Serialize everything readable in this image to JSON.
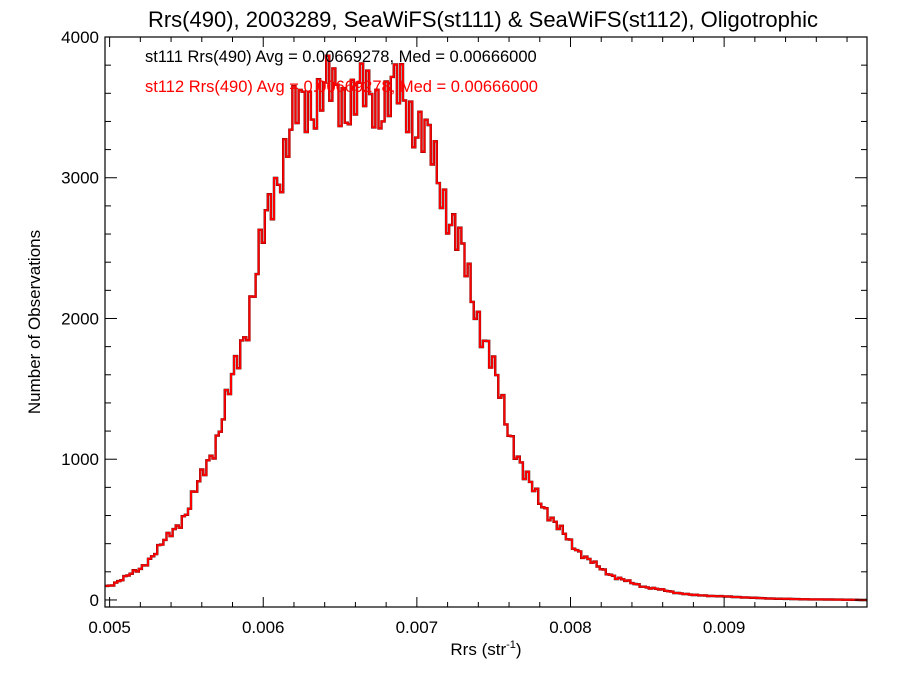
{
  "chart_data": {
    "type": "histogram-step",
    "title": "Rrs(490), 2003289, SeaWiFS(st111) & SeaWiFS(st112), Oligotrophic",
    "xlabel": "Rrs (str",
    "xlabel_sup": "-1",
    "xlabel_suffix": ")",
    "ylabel": "Number of Observations",
    "xlim": [
      0.00497,
      0.00993
    ],
    "ylim": [
      -50,
      4000
    ],
    "x_ticks": [
      0.005,
      0.006,
      0.007,
      0.008,
      0.009
    ],
    "x_tick_labels": [
      "0.005",
      "0.006",
      "0.007",
      "0.008",
      "0.009"
    ],
    "y_ticks": [
      0,
      1000,
      2000,
      3000,
      4000
    ],
    "y_tick_labels": [
      "0",
      "1000",
      "2000",
      "3000",
      "4000"
    ],
    "grid": false,
    "bin_width": 2e-05,
    "series": [
      {
        "name": "st111",
        "label": "st111 Rrs(490) Avg = 0.00669278, Med = 0.00666000",
        "color": "#000000"
      },
      {
        "name": "st112",
        "label": "st112 Rrs(490) Avg = 0.00669278, Med = 0.00666000",
        "color": "#ff0000"
      }
    ],
    "histogram": {
      "x": [
        0.005,
        0.0051,
        0.0052,
        0.0053,
        0.0054,
        0.0055,
        0.0056,
        0.0057,
        0.0058,
        0.0059,
        0.006,
        0.0061,
        0.0062,
        0.0063,
        0.0064,
        0.0065,
        0.0066,
        0.0067,
        0.0068,
        0.0069,
        0.007,
        0.0071,
        0.0072,
        0.0073,
        0.0074,
        0.0075,
        0.0076,
        0.0077,
        0.0078,
        0.0079,
        0.008,
        0.0081,
        0.0082,
        0.0083,
        0.0084,
        0.0085,
        0.0086,
        0.0087,
        0.0088,
        0.0089,
        0.009,
        0.0091,
        0.0092,
        0.0093,
        0.0094,
        0.0095,
        0.0096,
        0.0097,
        0.0098,
        0.0099
      ],
      "counts": [
        100,
        160,
        220,
        340,
        470,
        620,
        870,
        1150,
        1550,
        2000,
        2560,
        3050,
        3400,
        3550,
        3620,
        3570,
        3580,
        3560,
        3560,
        3600,
        3400,
        3150,
        2800,
        2420,
        2020,
        1620,
        1220,
        880,
        720,
        540,
        410,
        300,
        220,
        160,
        120,
        90,
        70,
        50,
        35,
        30,
        25,
        20,
        15,
        10,
        8,
        5,
        4,
        3,
        2,
        0
      ]
    }
  }
}
